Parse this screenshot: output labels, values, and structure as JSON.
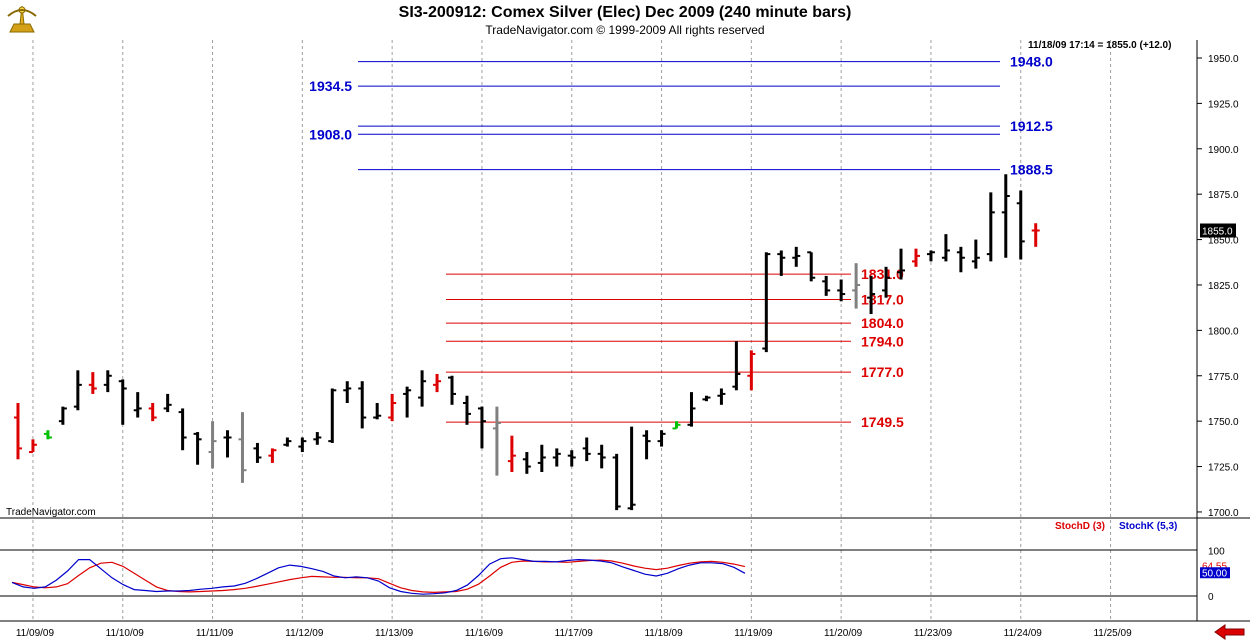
{
  "header": {
    "title": "SI3-200912:  Comex Silver (Elec) Dec 2009  (240 minute bars)",
    "subtitle": "TradeNavigator.com © 1999-2009 All rights reserved",
    "status": "11/18/09 17:14 = 1855.0 (+12.0)",
    "last_price": "1855.0",
    "watermark": "TradeNavigator.com"
  },
  "icons": {
    "logo": "sextant-icon",
    "back": "back-arrow-icon"
  },
  "colors": {
    "up": "#000000",
    "down": "#dd0000",
    "neutral": "#808080",
    "green": "#00c000",
    "upper_levels": "#0000cc",
    "lower_levels": "#dd0000",
    "stoch_d": "#dd0000",
    "stoch_k": "#0000cc"
  },
  "chart_data": [
    {
      "type": "ohlc",
      "title": "SI3-200912:  Comex Silver (Elec) Dec 2009  (240 minute bars)",
      "ylim": [
        1700,
        1960
      ],
      "y_ticks": [
        "1950.0",
        "1925.0",
        "1900.0",
        "1875.0",
        "1850.0",
        "1825.0",
        "1800.0",
        "1775.0",
        "1750.0",
        "1725.0",
        "1700.0"
      ],
      "y_tick_values": [
        1950,
        1925,
        1900,
        1875,
        1850,
        1825,
        1800,
        1775,
        1750,
        1725,
        1700
      ],
      "x_ticks": [
        "11/09/09",
        "11/10/09",
        "11/11/09",
        "11/12/09",
        "11/13/09",
        "11/16/09",
        "11/17/09",
        "11/18/09",
        "11/19/09",
        "11/20/09",
        "11/23/09",
        "11/24/09",
        "11/25/09"
      ],
      "bars_per_day": 6,
      "bars": [
        {
          "o": 1752,
          "h": 1760,
          "l": 1729,
          "c": 1735,
          "col": "down"
        },
        {
          "o": 1733,
          "h": 1740,
          "l": 1733,
          "c": 1737,
          "col": "down"
        },
        {
          "o": 1743,
          "h": 1745,
          "l": 1740,
          "c": 1741,
          "col": "green"
        },
        {
          "o": 1750,
          "h": 1758,
          "l": 1748,
          "c": 1757,
          "col": "up"
        },
        {
          "o": 1758,
          "h": 1778,
          "l": 1756,
          "c": 1770,
          "col": "up"
        },
        {
          "o": 1770,
          "h": 1777,
          "l": 1765,
          "c": 1768,
          "col": "down"
        },
        {
          "o": 1770,
          "h": 1778,
          "l": 1766,
          "c": 1775,
          "col": "up"
        },
        {
          "o": 1772,
          "h": 1773,
          "l": 1748,
          "c": 1768,
          "col": "up"
        },
        {
          "o": 1756,
          "h": 1766,
          "l": 1752,
          "c": 1757,
          "col": "up"
        },
        {
          "o": 1757,
          "h": 1760,
          "l": 1750,
          "c": 1752,
          "col": "down"
        },
        {
          "o": 1757,
          "h": 1765,
          "l": 1755,
          "c": 1759,
          "col": "up"
        },
        {
          "o": 1755,
          "h": 1757,
          "l": 1734,
          "c": 1741,
          "col": "up"
        },
        {
          "o": 1743,
          "h": 1744,
          "l": 1726,
          "c": 1740,
          "col": "up"
        },
        {
          "o": 1733,
          "h": 1750,
          "l": 1724,
          "c": 1739,
          "col": "neutral"
        },
        {
          "o": 1741,
          "h": 1745,
          "l": 1730,
          "c": 1741,
          "col": "up"
        },
        {
          "o": 1740,
          "h": 1755,
          "l": 1716,
          "c": 1723,
          "col": "neutral"
        },
        {
          "o": 1735,
          "h": 1738,
          "l": 1727,
          "c": 1730,
          "col": "up"
        },
        {
          "o": 1731,
          "h": 1735,
          "l": 1727,
          "c": 1734,
          "col": "down"
        },
        {
          "o": 1737,
          "h": 1741,
          "l": 1736,
          "c": 1739,
          "col": "up"
        },
        {
          "o": 1736,
          "h": 1741,
          "l": 1733,
          "c": 1739,
          "col": "up"
        },
        {
          "o": 1740,
          "h": 1744,
          "l": 1737,
          "c": 1741,
          "col": "up"
        },
        {
          "o": 1739,
          "h": 1768,
          "l": 1738,
          "c": 1767,
          "col": "up"
        },
        {
          "o": 1767,
          "h": 1772,
          "l": 1760,
          "c": 1768,
          "col": "up"
        },
        {
          "o": 1768,
          "h": 1772,
          "l": 1746,
          "c": 1752,
          "col": "up"
        },
        {
          "o": 1752,
          "h": 1760,
          "l": 1751,
          "c": 1753,
          "col": "up"
        },
        {
          "o": 1752,
          "h": 1765,
          "l": 1750,
          "c": 1760,
          "col": "down"
        },
        {
          "o": 1765,
          "h": 1769,
          "l": 1752,
          "c": 1767,
          "col": "up"
        },
        {
          "o": 1763,
          "h": 1778,
          "l": 1758,
          "c": 1772,
          "col": "up"
        },
        {
          "o": 1770,
          "h": 1776,
          "l": 1766,
          "c": 1772,
          "col": "down"
        },
        {
          "o": 1774,
          "h": 1775,
          "l": 1759,
          "c": 1765,
          "col": "up"
        },
        {
          "o": 1760,
          "h": 1764,
          "l": 1748,
          "c": 1754,
          "col": "up"
        },
        {
          "o": 1757,
          "h": 1758,
          "l": 1735,
          "c": 1750,
          "col": "up"
        },
        {
          "o": 1746,
          "h": 1758,
          "l": 1720,
          "c": 1749,
          "col": "neutral"
        },
        {
          "o": 1728,
          "h": 1742,
          "l": 1722,
          "c": 1731,
          "col": "down"
        },
        {
          "o": 1729,
          "h": 1733,
          "l": 1721,
          "c": 1725,
          "col": "up"
        },
        {
          "o": 1727,
          "h": 1737,
          "l": 1722,
          "c": 1730,
          "col": "up"
        },
        {
          "o": 1730,
          "h": 1735,
          "l": 1725,
          "c": 1732,
          "col": "up"
        },
        {
          "o": 1731,
          "h": 1734,
          "l": 1725,
          "c": 1730,
          "col": "up"
        },
        {
          "o": 1735,
          "h": 1741,
          "l": 1728,
          "c": 1732,
          "col": "up"
        },
        {
          "o": 1732,
          "h": 1737,
          "l": 1724,
          "c": 1730,
          "col": "up"
        },
        {
          "o": 1730,
          "h": 1732,
          "l": 1701,
          "c": 1703,
          "col": "up"
        },
        {
          "o": 1702,
          "h": 1747,
          "l": 1701,
          "c": 1704,
          "col": "up"
        },
        {
          "o": 1742,
          "h": 1745,
          "l": 1729,
          "c": 1739,
          "col": "up"
        },
        {
          "o": 1739,
          "h": 1745,
          "l": 1736,
          "c": 1743,
          "col": "up"
        },
        {
          "o": 1746,
          "h": 1750,
          "l": 1746,
          "c": 1748,
          "col": "green"
        },
        {
          "o": 1748,
          "h": 1766,
          "l": 1747,
          "c": 1757,
          "col": "up"
        },
        {
          "o": 1762,
          "h": 1764,
          "l": 1761,
          "c": 1763,
          "col": "up"
        },
        {
          "o": 1764,
          "h": 1768,
          "l": 1759,
          "c": 1765,
          "col": "up"
        },
        {
          "o": 1769,
          "h": 1794,
          "l": 1767,
          "c": 1776,
          "col": "up"
        },
        {
          "o": 1775,
          "h": 1789,
          "l": 1767,
          "c": 1787,
          "col": "down"
        },
        {
          "o": 1790,
          "h": 1843,
          "l": 1788,
          "c": 1842,
          "col": "up"
        },
        {
          "o": 1842,
          "h": 1844,
          "l": 1830,
          "c": 1840,
          "col": "up"
        },
        {
          "o": 1840,
          "h": 1846,
          "l": 1835,
          "c": 1841,
          "col": "up"
        },
        {
          "o": 1843,
          "h": 1843,
          "l": 1827,
          "c": 1829,
          "col": "up"
        },
        {
          "o": 1827,
          "h": 1830,
          "l": 1819,
          "c": 1822,
          "col": "up"
        },
        {
          "o": 1822,
          "h": 1828,
          "l": 1816,
          "c": 1820,
          "col": "up"
        },
        {
          "o": 1822,
          "h": 1837,
          "l": 1812,
          "c": 1825,
          "col": "neutral"
        },
        {
          "o": 1818,
          "h": 1830,
          "l": 1809,
          "c": 1820,
          "col": "up"
        },
        {
          "o": 1822,
          "h": 1835,
          "l": 1818,
          "c": 1829,
          "col": "up"
        },
        {
          "o": 1832,
          "h": 1845,
          "l": 1828,
          "c": 1833,
          "col": "up"
        },
        {
          "o": 1838,
          "h": 1845,
          "l": 1835,
          "c": 1841,
          "col": "down"
        },
        {
          "o": 1842,
          "h": 1844,
          "l": 1838,
          "c": 1843,
          "col": "up"
        },
        {
          "o": 1840,
          "h": 1853,
          "l": 1838,
          "c": 1844,
          "col": "up"
        },
        {
          "o": 1843,
          "h": 1846,
          "l": 1832,
          "c": 1840,
          "col": "up"
        },
        {
          "o": 1838,
          "h": 1850,
          "l": 1834,
          "c": 1840,
          "col": "up"
        },
        {
          "o": 1842,
          "h": 1876,
          "l": 1838,
          "c": 1865,
          "col": "up"
        },
        {
          "o": 1865,
          "h": 1886,
          "l": 1840,
          "c": 1874,
          "col": "up"
        },
        {
          "o": 1870,
          "h": 1877,
          "l": 1839,
          "c": 1849,
          "col": "up"
        },
        {
          "o": 1855,
          "h": 1859,
          "l": 1846,
          "c": 1855,
          "col": "down"
        }
      ],
      "levels_upper": [
        1948.0,
        1934.5,
        1912.5,
        1908.0,
        1888.5
      ],
      "level_labels_upper": [
        "1948.0",
        "1934.5",
        "1912.5",
        "1908.0",
        "1888.5"
      ],
      "levels_lower": [
        1831.0,
        1817.0,
        1804.0,
        1794.0,
        1777.0,
        1749.5
      ],
      "level_labels_lower": [
        "1831.0",
        "1817.0",
        "1804.0",
        "1794.0",
        "1777.0",
        "1749.5"
      ]
    },
    {
      "type": "line",
      "legend": [
        "StochD (3)",
        "StochK (5,3)"
      ],
      "ylim": [
        0,
        100
      ],
      "y_ticks": [
        "100",
        "0"
      ],
      "last_values": [
        "64.55",
        "50.00"
      ],
      "series": [
        {
          "name": "StochD (3)",
          "values": [
            30,
            25,
            20,
            18,
            20,
            27,
            45,
            62,
            72,
            74,
            65,
            50,
            35,
            20,
            12,
            10,
            9,
            10,
            11,
            12,
            14,
            17,
            21,
            26,
            31,
            36,
            40,
            43,
            42,
            41,
            41,
            40,
            40,
            38,
            28,
            18,
            12,
            9,
            8,
            9,
            10,
            15,
            26,
            44,
            63,
            74,
            77,
            76,
            75,
            75,
            74,
            76,
            78,
            79,
            77,
            72,
            66,
            61,
            58,
            61,
            67,
            72,
            75,
            76,
            74,
            70,
            64.55
          ]
        },
        {
          "name": "StochK (5,3)",
          "values": [
            30,
            20,
            17,
            20,
            35,
            55,
            80,
            80,
            60,
            40,
            25,
            14,
            12,
            10,
            11,
            11,
            12,
            15,
            17,
            20,
            22,
            28,
            38,
            50,
            62,
            68,
            65,
            60,
            54,
            44,
            40,
            42,
            40,
            33,
            18,
            10,
            6,
            4,
            5,
            7,
            12,
            24,
            45,
            70,
            82,
            84,
            80,
            76,
            76,
            75,
            78,
            80,
            79,
            77,
            73,
            64,
            56,
            48,
            44,
            50,
            60,
            68,
            73,
            73,
            71,
            63,
            50
          ]
        }
      ]
    }
  ]
}
